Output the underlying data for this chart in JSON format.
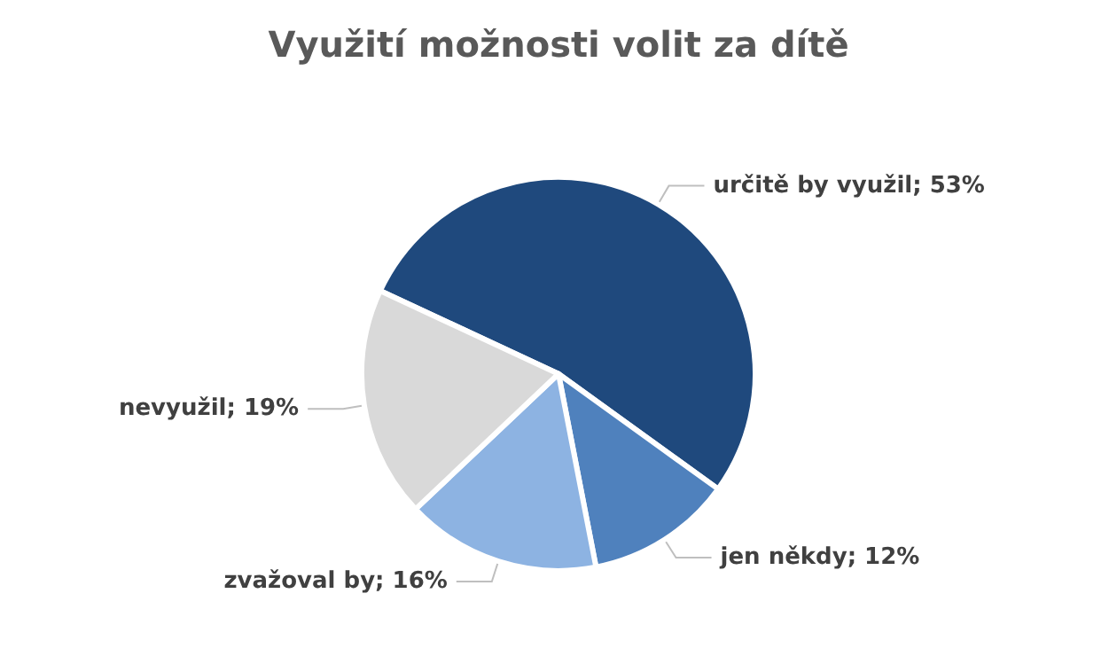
{
  "chart_data": {
    "type": "pie",
    "title": "Využití možnosti volit za dítě",
    "categories": [
      "určitě by využil",
      "jen někdy",
      "zvažoval by",
      "nevyužil"
    ],
    "values": [
      53,
      12,
      16,
      19
    ],
    "value_labels": [
      "53%",
      "12%",
      "16%",
      "19%"
    ],
    "colors": [
      "#1f497d",
      "#4f81bd",
      "#8db3e2",
      "#d9d9d9"
    ],
    "legend": false
  }
}
